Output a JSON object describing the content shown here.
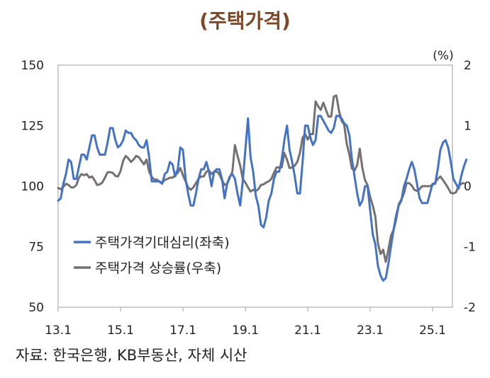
{
  "chart_data": {
    "type": "line",
    "title": "(주택가격)",
    "x_ticks": [
      "13.1",
      "15.1",
      "17.1",
      "19.1",
      "21.1",
      "23.1",
      "25.1"
    ],
    "y_left": {
      "ticks": [
        "150",
        "125",
        "100",
        "75",
        "50"
      ],
      "lim": [
        50,
        150
      ]
    },
    "y_right": {
      "ticks": [
        "2",
        "1",
        "0",
        "-1",
        "-2"
      ],
      "lim": [
        -2,
        2
      ],
      "unit": "(%)"
    },
    "series": [
      {
        "name": "주택가격기대심리(좌축)",
        "axis": "left",
        "color": "#4472c4",
        "x_start": "2013-01",
        "values": [
          94,
          95,
          101,
          105,
          111,
          110,
          103,
          103,
          108,
          113,
          113,
          111,
          116,
          121,
          121,
          116,
          113,
          113,
          113,
          118,
          124,
          124,
          119,
          116,
          117,
          119,
          123,
          122,
          122,
          120,
          119,
          117,
          116,
          116,
          119,
          112,
          102,
          102,
          102,
          102,
          101,
          105,
          106,
          110,
          109,
          104,
          107,
          116,
          115,
          103,
          97,
          92,
          92,
          97,
          103,
          107,
          107,
          110,
          106,
          100,
          106,
          107,
          107,
          103,
          95,
          101,
          104,
          105,
          103,
          97,
          92,
          102,
          115,
          128,
          112,
          106,
          96,
          92,
          84,
          83,
          87,
          94,
          97,
          103,
          106,
          106,
          111,
          119,
          125,
          115,
          110,
          104,
          97,
          97,
          110,
          125,
          125,
          120,
          117,
          119,
          129,
          129,
          127,
          125,
          123,
          122,
          124,
          129,
          129,
          128,
          126,
          125,
          121,
          111,
          104,
          97,
          92,
          94,
          100,
          100,
          90,
          80,
          76,
          67,
          63,
          61,
          62,
          68,
          75,
          82,
          88,
          92,
          94,
          100,
          103,
          107,
          110,
          107,
          101,
          95,
          93,
          93,
          93,
          97,
          101,
          101,
          107,
          115,
          118,
          119,
          116,
          110,
          103,
          101,
          99,
          104,
          108,
          111
        ]
      },
      {
        "name": "주택가격 상승률(우축)",
        "axis": "right",
        "color": "#767171",
        "x_start": "2013-01",
        "values": [
          -0.03,
          -0.05,
          -0.01,
          0.04,
          0.02,
          -0.02,
          -0.02,
          0.02,
          0.14,
          0.2,
          0.18,
          0.2,
          0.14,
          0.16,
          0.1,
          0.02,
          0.03,
          0.06,
          0.14,
          0.23,
          0.23,
          0.22,
          0.17,
          0.16,
          0.25,
          0.42,
          0.5,
          0.46,
          0.4,
          0.44,
          0.5,
          0.48,
          0.42,
          0.36,
          0.44,
          0.24,
          0.15,
          0.11,
          0.11,
          0.07,
          0.06,
          0.1,
          0.12,
          0.14,
          0.14,
          0.18,
          0.22,
          0.3,
          0.18,
          0.08,
          -0.02,
          -0.06,
          -0.02,
          0.05,
          0.12,
          0.16,
          0.16,
          0.24,
          0.26,
          0.2,
          0.24,
          0.24,
          0.2,
          0.1,
          0.02,
          0.04,
          0.14,
          0.24,
          0.68,
          0.5,
          0.34,
          0.12,
          0.06,
          -0.02,
          -0.09,
          -0.06,
          -0.08,
          -0.05,
          0.02,
          0.03,
          0.06,
          0.08,
          0.12,
          0.22,
          0.31,
          0.31,
          0.31,
          0.55,
          0.44,
          0.3,
          0.31,
          0.34,
          0.4,
          0.55,
          0.8,
          0.86,
          0.77,
          0.86,
          0.86,
          1.4,
          1.32,
          1.26,
          1.38,
          1.26,
          1.15,
          1.15,
          1.48,
          1.5,
          1.25,
          1.08,
          1.02,
          0.7,
          0.52,
          0.29,
          0.26,
          0.35,
          0.62,
          0.3,
          0.1,
          0.02,
          -0.18,
          -0.32,
          -0.5,
          -0.95,
          -1.12,
          -1.05,
          -1.25,
          -1.05,
          -0.82,
          -0.72,
          -0.55,
          -0.3,
          -0.22,
          -0.12,
          0.05,
          0.05,
          0.01,
          -0.06,
          -0.08,
          -0.05,
          0.0,
          0.0,
          0.0,
          0.0,
          0.02,
          0.06,
          0.12,
          0.16,
          0.1,
          0.04,
          -0.03,
          -0.11,
          -0.12,
          -0.1,
          0.0,
          0.04,
          0.05
        ]
      }
    ],
    "source": "자료: 한국은행, KB부동산, 자체 시산"
  }
}
